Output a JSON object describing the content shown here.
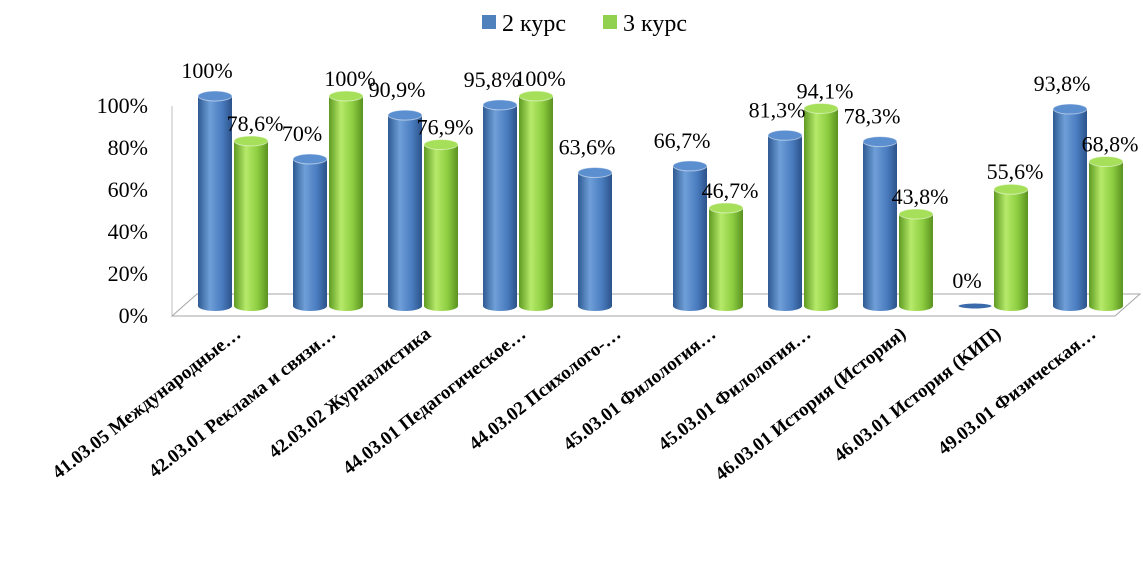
{
  "chart_data": {
    "type": "bar",
    "title": "",
    "xlabel": "",
    "ylabel": "",
    "ylim": [
      0,
      100
    ],
    "y_ticks": [
      "0%",
      "20%",
      "40%",
      "60%",
      "80%",
      "100%"
    ],
    "legend_position": "top",
    "grid": false,
    "categories": [
      "41.03.05 Международные…",
      "42.03.01 Реклама и связи…",
      "42.03.02 Журналистика",
      "44.03.01 Педагогическое…",
      "44.03.02 Психолого-…",
      "45.03.01 Филология…",
      "45.03.01 Филология…",
      "46.03.01 История (История)",
      "46.03.01 История (КИП)",
      "49.03.01 Физическая…"
    ],
    "series": [
      {
        "name": "2 курс",
        "color": "#4f81bd",
        "values": [
          100,
          70,
          90.9,
          95.8,
          63.6,
          66.7,
          81.3,
          78.3,
          0,
          93.8
        ],
        "labels": [
          "100%",
          "70%",
          "90,9%",
          "95,8%",
          "63,6%",
          "66,7%",
          "81,3%",
          "78,3%",
          "0%",
          "93,8%"
        ]
      },
      {
        "name": "3 курс",
        "color": "#92d050",
        "values": [
          78.6,
          100,
          76.9,
          100,
          null,
          46.7,
          94.1,
          43.8,
          55.6,
          68.8
        ],
        "labels": [
          "78,6%",
          "100%",
          "76,9%",
          "100%",
          "",
          "46,7%",
          "94,1%",
          "43,8%",
          "55,6%",
          "68,8%"
        ]
      }
    ]
  }
}
